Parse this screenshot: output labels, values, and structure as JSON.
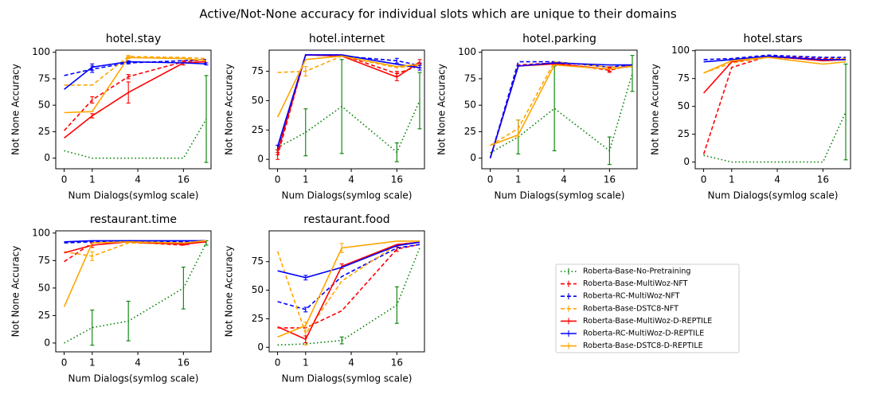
{
  "title": "Active/Not-None accuracy for individual slots which are unique to their domains",
  "legend": [
    {
      "name": "Roberta-Base-No-Pretraining",
      "color": "#008000",
      "linestyle": "dotted"
    },
    {
      "name": "Roberta-Base-MultiWoz-NFT",
      "color": "#ff0000",
      "linestyle": "dashed"
    },
    {
      "name": "Roberta-RC-MultiWoz-NFT",
      "color": "#0000ff",
      "linestyle": "dashed"
    },
    {
      "name": "Roberta-Base-DSTC8-NFT",
      "color": "#ffa500",
      "linestyle": "dashed"
    },
    {
      "name": "Roberta-Base-MultiWoz-D-REPTILE",
      "color": "#ff0000",
      "linestyle": "solid"
    },
    {
      "name": "Roberta-RC-MultiWoz-D-REPTILE",
      "color": "#0000ff",
      "linestyle": "solid"
    },
    {
      "name": "Roberta-Base-DSTC8-D-REPTILE",
      "color": "#ffa500",
      "linestyle": "solid"
    }
  ],
  "chart_data": [
    {
      "type": "line",
      "title": "hotel.stay",
      "x_label": "Num Dialogs(symlog scale)",
      "y_label": "Not None Accuracy",
      "x_scale": "symlog",
      "x": [
        0,
        1,
        3,
        16,
        32
      ],
      "xlim": [
        -0.3,
        37
      ],
      "xticks": [
        0,
        1,
        4,
        16
      ],
      "ylim": [
        -10,
        102
      ],
      "yticks": [
        0,
        25,
        50,
        75,
        100
      ],
      "series": [
        {
          "values": [
            7,
            0,
            0,
            0,
            37
          ],
          "errors": [
            0,
            0,
            0,
            0,
            41
          ]
        },
        {
          "values": [
            26,
            55,
            77,
            91,
            93
          ],
          "errors": [
            0,
            3,
            2,
            0,
            0
          ]
        },
        {
          "values": [
            78,
            84,
            90,
            92,
            93
          ],
          "errors": [
            0,
            3,
            1,
            0,
            0
          ]
        },
        {
          "values": [
            69,
            69,
            96,
            95,
            94
          ],
          "errors": [
            0,
            0,
            1,
            0,
            0
          ]
        },
        {
          "values": [
            19,
            40,
            62,
            90,
            91
          ],
          "errors": [
            0,
            2,
            10,
            2,
            0
          ]
        },
        {
          "values": [
            65,
            86,
            91,
            90,
            89
          ],
          "errors": [
            0,
            3,
            1,
            0,
            1
          ]
        },
        {
          "values": [
            43,
            44,
            95,
            94,
            92
          ],
          "errors": [
            0,
            0,
            1,
            0,
            0
          ]
        }
      ]
    },
    {
      "type": "line",
      "title": "hotel.internet",
      "x_label": "Num Dialogs(symlog scale)",
      "y_label": "Not None Accuracy",
      "x_scale": "symlog",
      "x": [
        0,
        1,
        3,
        16,
        32
      ],
      "xlim": [
        -0.3,
        37
      ],
      "xticks": [
        0,
        1,
        4,
        16
      ],
      "ylim": [
        -8,
        93
      ],
      "yticks": [
        0,
        25,
        50,
        75
      ],
      "series": [
        {
          "values": [
            10,
            23,
            45,
            6,
            50
          ],
          "errors": [
            0,
            20,
            40,
            8,
            24
          ]
        },
        {
          "values": [
            3,
            89,
            89,
            73,
            80
          ],
          "errors": [
            3,
            0,
            0,
            2,
            2
          ]
        },
        {
          "values": [
            10,
            89,
            88,
            84,
            80
          ],
          "errors": [
            2,
            0,
            0,
            2,
            2
          ]
        },
        {
          "values": [
            74,
            75,
            88,
            78,
            80
          ],
          "errors": [
            0,
            4,
            0,
            0,
            0
          ]
        },
        {
          "values": [
            6,
            89,
            88,
            70,
            83
          ],
          "errors": [
            2,
            0,
            0,
            3,
            2
          ]
        },
        {
          "values": [
            11,
            89,
            89,
            81,
            78
          ],
          "errors": [
            0,
            0,
            0,
            0,
            2
          ]
        },
        {
          "values": [
            36,
            85,
            88,
            79,
            81
          ],
          "errors": [
            0,
            0,
            0,
            0,
            0
          ]
        }
      ]
    },
    {
      "type": "line",
      "title": "hotel.parking",
      "x_label": "Num Dialogs(symlog scale)",
      "y_label": "Not None Accuracy",
      "x_scale": "symlog",
      "x": [
        0,
        1,
        3,
        16,
        32
      ],
      "xlim": [
        -0.3,
        37
      ],
      "xticks": [
        0,
        1,
        4,
        16
      ],
      "ylim": [
        -10,
        102
      ],
      "yticks": [
        0,
        25,
        50,
        75,
        100
      ],
      "series": [
        {
          "values": [
            5,
            20,
            47,
            7,
            80
          ],
          "errors": [
            0,
            16,
            40,
            13,
            17
          ]
        },
        {
          "values": [
            0,
            88,
            90,
            83,
            88
          ],
          "errors": [
            0,
            0,
            0,
            2,
            0
          ]
        },
        {
          "values": [
            0,
            91,
            91,
            86,
            88
          ],
          "errors": [
            0,
            0,
            0,
            0,
            0
          ]
        },
        {
          "values": [
            12,
            28,
            91,
            86,
            86
          ],
          "errors": [
            0,
            8,
            0,
            0,
            0
          ]
        },
        {
          "values": [
            0,
            87,
            89,
            84,
            87
          ],
          "errors": [
            0,
            0,
            0,
            2,
            0
          ]
        },
        {
          "values": [
            0,
            87,
            90,
            88,
            88
          ],
          "errors": [
            0,
            0,
            0,
            0,
            0
          ]
        },
        {
          "values": [
            12,
            22,
            88,
            84,
            87
          ],
          "errors": [
            0,
            0,
            0,
            0,
            0
          ]
        }
      ]
    },
    {
      "type": "line",
      "title": "hotel.stars",
      "x_label": "Num Dialogs(symlog scale)",
      "y_label": "Not None Accuracy",
      "x_scale": "symlog",
      "x": [
        0,
        1,
        3,
        16,
        32
      ],
      "xlim": [
        -0.3,
        37
      ],
      "xticks": [
        0,
        1,
        4,
        16
      ],
      "ylim": [
        -6,
        100.5
      ],
      "yticks": [
        0,
        25,
        50,
        75,
        100
      ],
      "series": [
        {
          "values": [
            6,
            0,
            0,
            0,
            45
          ],
          "errors": [
            0,
            0,
            0,
            0,
            43
          ]
        },
        {
          "values": [
            7,
            85,
            95,
            93,
            93
          ],
          "errors": [
            0,
            0,
            0,
            0,
            0
          ]
        },
        {
          "values": [
            92,
            93,
            96,
            94,
            94
          ],
          "errors": [
            0,
            0,
            0,
            0,
            0
          ]
        },
        {
          "values": [
            80,
            89,
            94,
            92,
            93
          ],
          "errors": [
            0,
            0,
            0,
            0,
            0
          ]
        },
        {
          "values": [
            62,
            90,
            95,
            91,
            92
          ],
          "errors": [
            0,
            0,
            0,
            0,
            0
          ]
        },
        {
          "values": [
            90,
            92,
            95,
            92,
            92
          ],
          "errors": [
            0,
            0,
            0,
            0,
            0
          ]
        },
        {
          "values": [
            80,
            91,
            94,
            88,
            90
          ],
          "errors": [
            0,
            0,
            0,
            0,
            0
          ]
        }
      ]
    },
    {
      "type": "line",
      "title": "restaurant.time",
      "x_label": "Num Dialogs(symlog scale)",
      "y_label": "Not None Accuracy",
      "x_scale": "symlog",
      "x": [
        0,
        1,
        3,
        16,
        32
      ],
      "xlim": [
        -0.3,
        37
      ],
      "xticks": [
        0,
        1,
        4,
        16
      ],
      "ylim": [
        -8,
        102
      ],
      "yticks": [
        0,
        25,
        50,
        75,
        100
      ],
      "series": [
        {
          "values": [
            0,
            14,
            20,
            50,
            91
          ],
          "errors": [
            0,
            16,
            18,
            19,
            2
          ]
        },
        {
          "values": [
            74,
            91,
            92,
            89,
            93
          ],
          "errors": [
            0,
            0,
            0,
            0,
            0
          ]
        },
        {
          "values": [
            91,
            92,
            93,
            92,
            92
          ],
          "errors": [
            0,
            0,
            0,
            0,
            0
          ]
        },
        {
          "values": [
            83,
            79,
            91,
            90,
            92
          ],
          "errors": [
            0,
            4,
            0,
            0,
            0
          ]
        },
        {
          "values": [
            82,
            89,
            92,
            90,
            92
          ],
          "errors": [
            0,
            2,
            0,
            1,
            0
          ]
        },
        {
          "values": [
            92,
            93,
            93,
            93,
            93
          ],
          "errors": [
            0,
            0,
            0,
            0,
            0
          ]
        },
        {
          "values": [
            33,
            91,
            92,
            91,
            93
          ],
          "errors": [
            0,
            0,
            0,
            0,
            0
          ]
        }
      ]
    },
    {
      "type": "line",
      "title": "restaurant.food",
      "x_label": "Num Dialogs(symlog scale)",
      "y_label": "Not None Accuracy",
      "x_scale": "symlog",
      "x": [
        0,
        1,
        3,
        16,
        32
      ],
      "xlim": [
        -0.3,
        37
      ],
      "xticks": [
        0,
        1,
        4,
        16
      ],
      "ylim": [
        -4,
        102
      ],
      "yticks": [
        0,
        25,
        50,
        75
      ],
      "series": [
        {
          "values": [
            2,
            3,
            6,
            37,
            87
          ],
          "errors": [
            0,
            0,
            3,
            16,
            0
          ]
        },
        {
          "values": [
            17,
            17,
            32,
            86,
            90
          ],
          "errors": [
            0,
            0,
            0,
            2,
            0
          ]
        },
        {
          "values": [
            40,
            33,
            62,
            87,
            90
          ],
          "errors": [
            0,
            2,
            0,
            0,
            0
          ]
        },
        {
          "values": [
            84,
            12,
            58,
            90,
            92
          ],
          "errors": [
            0,
            10,
            0,
            0,
            0
          ]
        },
        {
          "values": [
            18,
            7,
            71,
            90,
            92
          ],
          "errors": [
            0,
            3,
            2,
            0,
            0
          ]
        },
        {
          "values": [
            67,
            61,
            70,
            89,
            92
          ],
          "errors": [
            0,
            2,
            0,
            0,
            0
          ]
        },
        {
          "values": [
            9,
            19,
            87,
            93,
            93
          ],
          "errors": [
            0,
            0,
            4,
            0,
            0
          ]
        }
      ]
    }
  ]
}
